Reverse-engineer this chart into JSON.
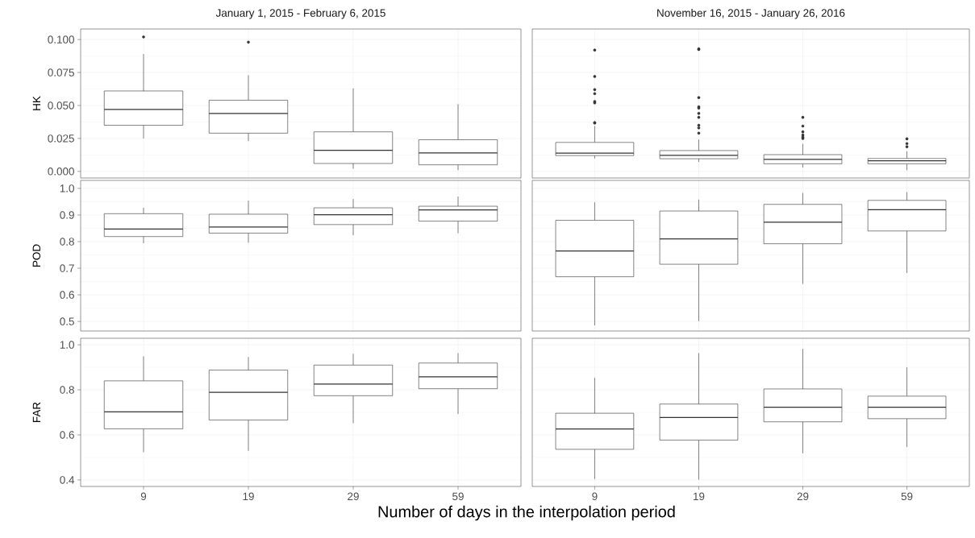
{
  "chart_data": [
    {
      "type": "box",
      "title": "January 1, 2015 - February 6, 2015",
      "ylabel": "HK",
      "categories": [
        "9",
        "19",
        "29",
        "59"
      ],
      "color": "#333333",
      "grid": true,
      "tick_labels": "y",
      "ylim": [
        -0.005,
        0.108
      ],
      "yticks": [
        {
          "value": 0,
          "label": "0.000"
        },
        0.025,
        {
          "value": 0.05,
          "label": "0.050"
        },
        0.075,
        {
          "value": 0.1,
          "label": "0.100"
        }
      ],
      "boxes": [
        {
          "low": 0.025,
          "q1": 0.035,
          "median": 0.047,
          "q3": 0.061,
          "high": 0.089,
          "outliers": [
            0.102
          ]
        },
        {
          "low": 0.023,
          "q1": 0.029,
          "median": 0.044,
          "q3": 0.054,
          "high": 0.073,
          "outliers": [
            0.098
          ]
        },
        {
          "low": 0.002,
          "q1": 0.006,
          "median": 0.016,
          "q3": 0.03,
          "high": 0.063
        },
        {
          "low": 0.001,
          "q1": 0.005,
          "median": 0.014,
          "q3": 0.024,
          "high": 0.051
        }
      ]
    },
    {
      "type": "box",
      "title": "November 16, 2015 - January 26, 2016",
      "categories": [
        "9",
        "19",
        "29",
        "59"
      ],
      "color": "#333333",
      "grid": true,
      "tick_labels": false,
      "ylim": [
        -0.005,
        0.108
      ],
      "yticks": [
        0,
        0.025,
        0.05,
        0.075,
        0.1
      ],
      "boxes": [
        {
          "low": 0.0098,
          "q1": 0.012,
          "median": 0.0138,
          "q3": 0.022,
          "high": 0.0344,
          "outliers": [
            0.092,
            0.072,
            0.062,
            0.059,
            0.053,
            0.052,
            0.037,
            0.0367
          ]
        },
        {
          "low": 0.0071,
          "q1": 0.0096,
          "median": 0.0122,
          "q3": 0.0158,
          "high": 0.0242,
          "outliers": [
            0.093,
            0.0925,
            0.056,
            0.049,
            0.048,
            0.044,
            0.041,
            0.035,
            0.033,
            0.029
          ]
        },
        {
          "low": 0.0029,
          "q1": 0.0058,
          "median": 0.0091,
          "q3": 0.0127,
          "high": 0.0209,
          "outliers": [
            0.041,
            0.0344,
            0.03,
            0.0276,
            0.026,
            0.025
          ]
        },
        {
          "low": 0.0009,
          "q1": 0.0058,
          "median": 0.008,
          "q3": 0.0098,
          "high": 0.0153,
          "outliers": [
            0.0247,
            0.0211,
            0.0187
          ]
        }
      ]
    },
    {
      "type": "box",
      "ylabel": "POD",
      "categories": [
        "9",
        "19",
        "29",
        "59"
      ],
      "color": "#333333",
      "grid": true,
      "tick_labels": "y",
      "ylim": [
        0.464,
        1.03
      ],
      "yticks": [
        0.5,
        0.6,
        0.7,
        0.8,
        0.9,
        {
          "value": 1.0,
          "label": "1.0"
        }
      ],
      "boxes": [
        {
          "low": 0.794,
          "q1": 0.819,
          "median": 0.847,
          "q3": 0.905,
          "high": 0.927
        },
        {
          "low": 0.796,
          "q1": 0.832,
          "median": 0.855,
          "q3": 0.903,
          "high": 0.954
        },
        {
          "low": 0.824,
          "q1": 0.864,
          "median": 0.901,
          "q3": 0.927,
          "high": 0.96
        },
        {
          "low": 0.832,
          "q1": 0.877,
          "median": 0.919,
          "q3": 0.933,
          "high": 0.969
        }
      ]
    },
    {
      "type": "box",
      "categories": [
        "9",
        "19",
        "29",
        "59"
      ],
      "color": "#333333",
      "grid": true,
      "tick_labels": false,
      "ylim": [
        0.464,
        1.03
      ],
      "yticks": [
        0.5,
        0.6,
        0.7,
        0.8,
        0.9,
        1.0
      ],
      "boxes": [
        {
          "low": 0.485,
          "q1": 0.668,
          "median": 0.765,
          "q3": 0.88,
          "high": 0.948
        },
        {
          "low": 0.501,
          "q1": 0.715,
          "median": 0.81,
          "q3": 0.915,
          "high": 0.958
        },
        {
          "low": 0.641,
          "q1": 0.792,
          "median": 0.873,
          "q3": 0.94,
          "high": 0.983
        },
        {
          "low": 0.682,
          "q1": 0.84,
          "median": 0.92,
          "q3": 0.955,
          "high": 0.986
        }
      ]
    },
    {
      "type": "box",
      "ylabel": "FAR",
      "xlabel": "Number of days in the interpolation period",
      "categories": [
        "9",
        "19",
        "29",
        "59"
      ],
      "color": "#333333",
      "grid": true,
      "ylim": [
        0.371,
        1.029
      ],
      "yticks": [
        0.4,
        0.6,
        0.8,
        {
          "value": 1.0,
          "label": "1.0"
        }
      ],
      "boxes": [
        {
          "low": 0.523,
          "q1": 0.627,
          "median": 0.702,
          "q3": 0.84,
          "high": 0.949
        },
        {
          "low": 0.529,
          "q1": 0.666,
          "median": 0.789,
          "q3": 0.888,
          "high": 0.946
        },
        {
          "low": 0.652,
          "q1": 0.774,
          "median": 0.826,
          "q3": 0.91,
          "high": 0.96
        },
        {
          "low": 0.693,
          "q1": 0.805,
          "median": 0.858,
          "q3": 0.919,
          "high": 0.963
        }
      ]
    },
    {
      "type": "box",
      "categories": [
        "9",
        "19",
        "29",
        "59"
      ],
      "color": "#333333",
      "grid": true,
      "tick_labels": "x",
      "ylim": [
        0.371,
        1.029
      ],
      "yticks": [
        0.4,
        0.6,
        0.8,
        1.0
      ],
      "boxes": [
        {
          "low": 0.404,
          "q1": 0.536,
          "median": 0.626,
          "q3": 0.696,
          "high": 0.853
        },
        {
          "low": 0.401,
          "q1": 0.577,
          "median": 0.677,
          "q3": 0.737,
          "high": 0.963
        },
        {
          "low": 0.518,
          "q1": 0.658,
          "median": 0.723,
          "q3": 0.804,
          "high": 0.982
        },
        {
          "low": 0.546,
          "q1": 0.672,
          "median": 0.723,
          "q3": 0.772,
          "high": 0.9
        }
      ]
    }
  ]
}
